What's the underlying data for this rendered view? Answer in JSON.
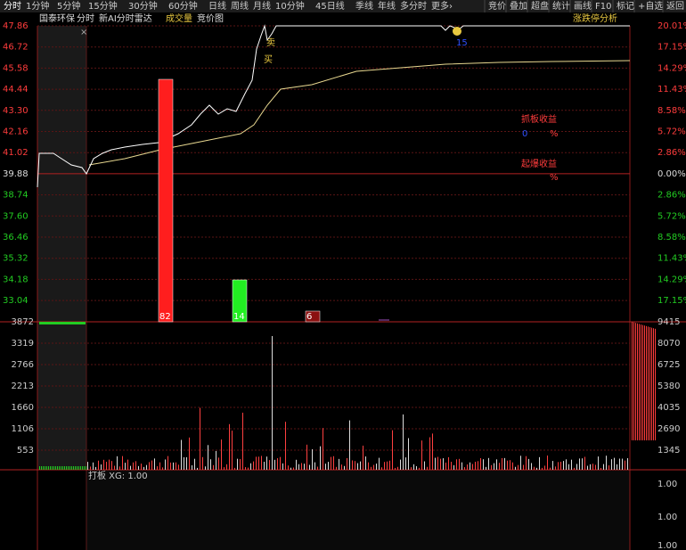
{
  "toolbar": {
    "tabs": [
      "分时",
      "1分钟",
      "5分钟",
      "15分钟",
      "30分钟",
      "60分钟",
      "日线",
      "周线",
      "月线",
      "10分钟",
      "45日线",
      "季线",
      "年线",
      "多分时",
      "更多›"
    ],
    "right_tabs": [
      "竞价",
      "叠加",
      "超盘",
      "统计",
      "画线",
      "F10",
      "标记",
      "+自选",
      "返回"
    ]
  },
  "header": {
    "stock": "国泰环保",
    "items": [
      "分时",
      "新AI分时雷达",
      "成交量",
      "竞价图"
    ],
    "right": "涨跌停分析"
  },
  "price_axis": {
    "labels": [
      "47.86",
      "46.72",
      "45.58",
      "44.44",
      "43.30",
      "42.16",
      "41.02",
      "39.88",
      "38.74",
      "37.60",
      "36.46",
      "35.32",
      "34.18",
      "33.04"
    ],
    "pct_labels": [
      "20.01%",
      "17.15%",
      "14.29%",
      "11.43%",
      "8.58%",
      "5.72%",
      "2.86%",
      "0.00%",
      "2.86%",
      "5.72%",
      "8.58%",
      "11.43%",
      "14.29%",
      "17.15%"
    ]
  },
  "volume_axis": {
    "labels": [
      "3872",
      "3319",
      "2766",
      "2213",
      "1660",
      "1106",
      "553"
    ],
    "right_labels": [
      "9415",
      "8070",
      "6725",
      "5380",
      "4035",
      "2690",
      "1345"
    ]
  },
  "annotations": {
    "grab_label": "抓板收益",
    "grab_value": "0",
    "grab_unit": "%",
    "burst_label": "起爆收益",
    "burst_unit": "%",
    "buy": "买",
    "sell": "卖",
    "count": "15"
  },
  "signal_bars": [
    {
      "label": "82"
    },
    {
      "label": "14"
    },
    {
      "label": "6"
    }
  ],
  "bottom_panel": {
    "title": "打板 XG: 1.00",
    "labels": [
      "1.00",
      "1.00",
      "1.00"
    ]
  }
}
